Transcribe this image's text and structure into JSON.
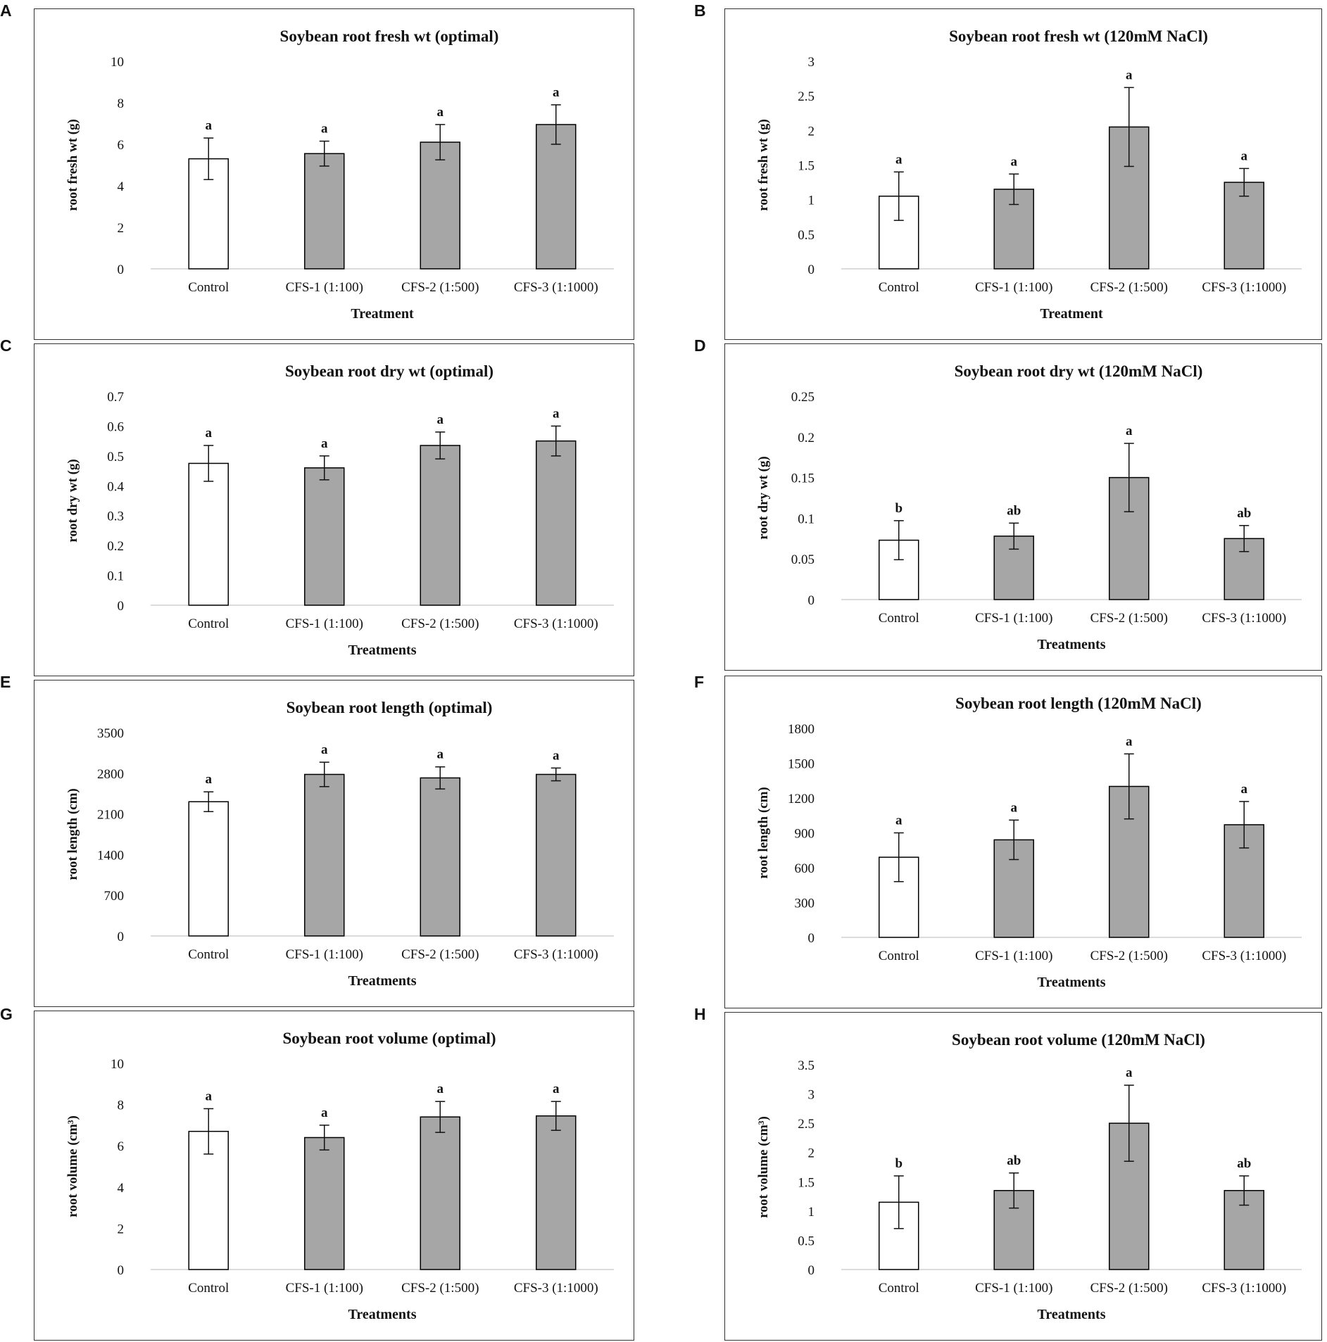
{
  "figure": {
    "name": "Soybean root traits under optimal and salt (120mM NaCl) conditions"
  },
  "colors": {
    "control_fill": "#ffffff",
    "treatment_fill": "#a6a6a6",
    "bar_stroke": "#000000",
    "axis_line": "#d0d0d0"
  },
  "chart_data": [
    {
      "panel": "A",
      "type": "bar",
      "title": "Soybean root fresh wt (optimal)",
      "xlabel": "Treatment",
      "ylabel": "root fresh wt (g)",
      "categories": [
        "Control",
        "CFS-1 (1:100)",
        "CFS-2 (1:500)",
        "CFS-3 (1:1000)"
      ],
      "values": [
        5.3,
        5.55,
        6.1,
        6.95
      ],
      "errors": [
        1.0,
        0.6,
        0.85,
        0.95
      ],
      "letters": [
        "a",
        "a",
        "a",
        "a"
      ],
      "ylim": [
        0,
        10
      ],
      "yticks": [
        "0",
        "2",
        "4",
        "6",
        "8",
        "10"
      ]
    },
    {
      "panel": "B",
      "type": "bar",
      "title": "Soybean root fresh wt (120mM NaCl)",
      "xlabel": "Treatment",
      "ylabel": "root fresh wt (g)",
      "categories": [
        "Control",
        "CFS-1 (1:100)",
        "CFS-2 (1:500)",
        "CFS-3 (1:1000)"
      ],
      "values": [
        1.05,
        1.15,
        2.05,
        1.25
      ],
      "errors": [
        0.35,
        0.22,
        0.57,
        0.2
      ],
      "letters": [
        "a",
        "a",
        "a",
        "a"
      ],
      "ylim": [
        0,
        3
      ],
      "yticks": [
        "0",
        "0.5",
        "1",
        "1.5",
        "2",
        "2.5",
        "3"
      ]
    },
    {
      "panel": "C",
      "type": "bar",
      "title": "Soybean root dry wt (optimal)",
      "xlabel": "Treatments",
      "ylabel": "root dry  wt (g)",
      "categories": [
        "Control",
        "CFS-1 (1:100)",
        "CFS-2 (1:500)",
        "CFS-3 (1:1000)"
      ],
      "values": [
        0.475,
        0.46,
        0.535,
        0.55
      ],
      "errors": [
        0.06,
        0.04,
        0.045,
        0.05
      ],
      "letters": [
        "a",
        "a",
        "a",
        "a"
      ],
      "ylim": [
        0,
        0.7
      ],
      "yticks": [
        "0",
        "0.1",
        "0.2",
        "0.3",
        "0.4",
        "0.5",
        "0.6",
        "0.7"
      ]
    },
    {
      "panel": "D",
      "type": "bar",
      "title": "Soybean root dry wt (120mM NaCl)",
      "xlabel": "Treatments",
      "ylabel": "root dry  wt (g)",
      "categories": [
        "Control",
        "CFS-1 (1:100)",
        "CFS-2 (1:500)",
        "CFS-3 (1:1000)"
      ],
      "values": [
        0.073,
        0.078,
        0.15,
        0.075
      ],
      "errors": [
        0.024,
        0.016,
        0.042,
        0.016
      ],
      "letters": [
        "b",
        "ab",
        "a",
        "ab"
      ],
      "ylim": [
        0,
        0.25
      ],
      "yticks": [
        "0",
        "0.05",
        "0.1",
        "0.15",
        "0.2",
        "0.25"
      ]
    },
    {
      "panel": "E",
      "type": "bar",
      "title": "Soybean root length (optimal)",
      "xlabel": "Treatments",
      "ylabel": "root length (cm)",
      "categories": [
        "Control",
        "CFS-1 (1:100)",
        "CFS-2 (1:500)",
        "CFS-3 (1:1000)"
      ],
      "values": [
        2310,
        2780,
        2720,
        2780
      ],
      "errors": [
        170,
        210,
        190,
        110
      ],
      "letters": [
        "a",
        "a",
        "a",
        "a"
      ],
      "ylim": [
        0,
        3500
      ],
      "yticks": [
        "0",
        "700",
        "1400",
        "2100",
        "2800",
        "3500"
      ]
    },
    {
      "panel": "F",
      "type": "bar",
      "title": "Soybean root length (120mM NaCl)",
      "xlabel": "Treatments",
      "ylabel": "root length (cm)",
      "categories": [
        "Control",
        "CFS-1 (1:100)",
        "CFS-2 (1:500)",
        "CFS-3 (1:1000)"
      ],
      "values": [
        690,
        840,
        1300,
        970
      ],
      "errors": [
        210,
        170,
        280,
        200
      ],
      "letters": [
        "a",
        "a",
        "a",
        "a"
      ],
      "ylim": [
        0,
        1800
      ],
      "yticks": [
        "0",
        "300",
        "600",
        "900",
        "1200",
        "1500",
        "1800"
      ]
    },
    {
      "panel": "G",
      "type": "bar",
      "title": "Soybean root volume (optimal)",
      "xlabel": "Treatments",
      "ylabel": "root volume (cm³)",
      "categories": [
        "Control",
        "CFS-1 (1:100)",
        "CFS-2 (1:500)",
        "CFS-3 (1:1000)"
      ],
      "values": [
        6.7,
        6.4,
        7.4,
        7.45
      ],
      "errors": [
        1.1,
        0.6,
        0.75,
        0.7
      ],
      "letters": [
        "a",
        "a",
        "a",
        "a"
      ],
      "ylim": [
        0,
        10
      ],
      "yticks": [
        "0",
        "2",
        "4",
        "6",
        "8",
        "10"
      ]
    },
    {
      "panel": "H",
      "type": "bar",
      "title": "Soybean root volume (120mM NaCl)",
      "xlabel": "Treatments",
      "ylabel": "root volume  (cm³)",
      "categories": [
        "Control",
        "CFS-1 (1:100)",
        "CFS-2 (1:500)",
        "CFS-3 (1:1000)"
      ],
      "values": [
        1.15,
        1.35,
        2.5,
        1.35
      ],
      "errors": [
        0.45,
        0.3,
        0.65,
        0.25
      ],
      "letters": [
        "b",
        "ab",
        "a",
        "ab"
      ],
      "ylim": [
        0,
        3.5
      ],
      "yticks": [
        "0",
        "0.5",
        "1",
        "1.5",
        "2",
        "2.5",
        "3",
        "3.5"
      ]
    }
  ]
}
